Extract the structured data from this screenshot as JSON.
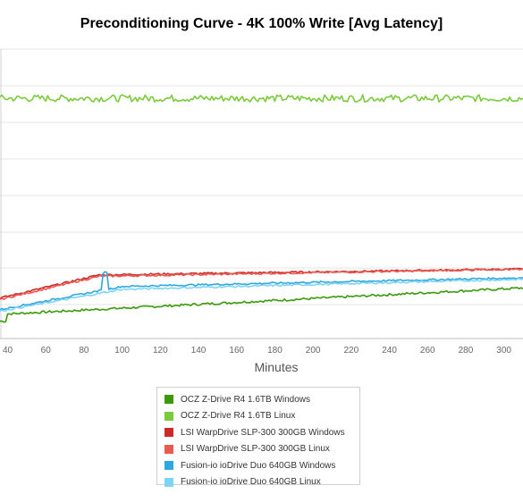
{
  "chart_data": {
    "type": "line",
    "title": "Preconditioning Curve - 4K 100% Write [Avg Latency]",
    "xlabel": "Minutes",
    "ylabel": "",
    "x_ticks": [
      40,
      60,
      80,
      100,
      120,
      140,
      160,
      180,
      200,
      220,
      240,
      260,
      280,
      300
    ],
    "xlim": [
      36,
      310
    ],
    "grid": true,
    "legend_position": "bottom",
    "series": [
      {
        "name": "OCZ Z-Drive R4 1.6TB Windows",
        "color": "#3a9a0a",
        "level": 0.22
      },
      {
        "name": "OCZ Z-Drive R4 1.6TB Linux",
        "color": "#7acb3a",
        "level": 0.83
      },
      {
        "name": "LSI WarpDrive SLP-300 300GB Windows",
        "color": "#cc2a26",
        "level": 0.35
      },
      {
        "name": "LSI WarpDrive SLP-300 300GB Linux",
        "color": "#ea5a50",
        "level": 0.35
      },
      {
        "name": "Fusion-io ioDrive Duo 640GB Windows",
        "color": "#2ea8e0",
        "level": 0.33
      },
      {
        "name": "Fusion-io ioDrive Duo 640GB Linux",
        "color": "#7fd4f5",
        "level": 0.32
      }
    ]
  }
}
